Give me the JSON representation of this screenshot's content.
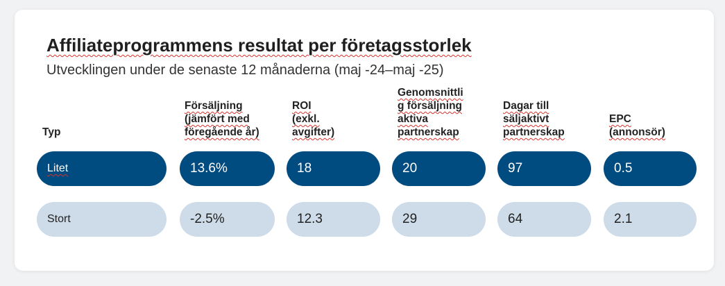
{
  "title": "Affiliateprogrammens resultat per företagsstorlek",
  "subtitle": "Utvecklingen under de senaste 12 månaderna (maj -24–maj -25)",
  "columns": [
    "Typ",
    "Försäljning\n(jämfört med\nföregående år)",
    "ROI\n(exkl.\navgifter)",
    "Genomsnittli\ng försäljning\naktiva\npartnerskap",
    "Dagar till\nsäljaktivt\npartnerskap",
    "EPC\n(annonsör)"
  ],
  "rows": [
    {
      "type": "Litet",
      "sales": "13.6%",
      "roi": "18",
      "avg_sales": "20",
      "days": "97",
      "epc": "0.5"
    },
    {
      "type": "Stort",
      "sales": "-2.5%",
      "roi": "12.3",
      "avg_sales": "29",
      "days": "64",
      "epc": "2.1"
    }
  ],
  "colors": {
    "dark_row": "#004b80",
    "light_row": "#cddce8"
  }
}
